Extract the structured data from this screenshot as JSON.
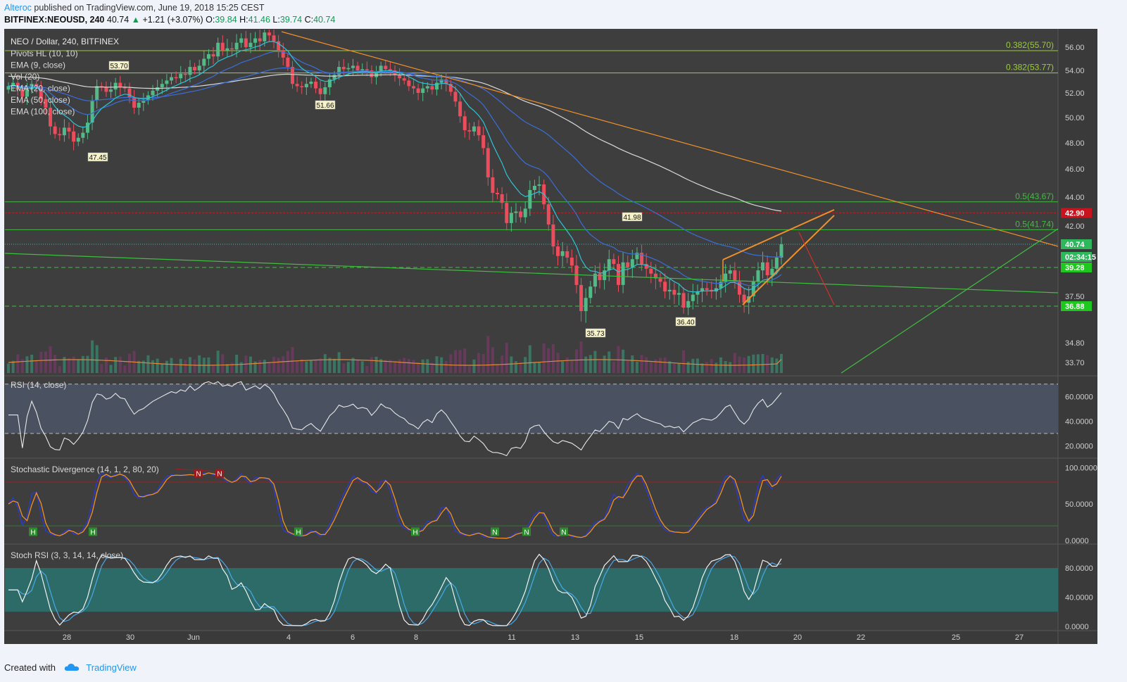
{
  "header": {
    "author": "Alteroc",
    "published_text": "published on TradingView.com, June 19, 2018 15:25 CEST",
    "symbol_line": "BITFINEX:NEOUSD, 240",
    "last": "40.74",
    "change": "+1.21 (+3.07%)",
    "o_label": "O:",
    "o": "39.84",
    "h_label": "H:",
    "h": "41.46",
    "l_label": "L:",
    "l": "39.74",
    "c_label": "C:",
    "c": "40.74"
  },
  "footer": {
    "created_with": "Created with",
    "brand": "TradingView"
  },
  "colors": {
    "panel_bg": "#3e3e3e",
    "up": "#53b987",
    "down": "#eb4d5c",
    "ema9": "#2ec4d8",
    "ema20": "#3a6ed8",
    "ema100": "#d9d9d9",
    "trend": "#f0902a",
    "support": "#3fbf3f",
    "fib": "#9ccc3c",
    "resistance": "#b2222c",
    "rsi_band": "#4a5160",
    "stoch_rsi_band": "#2c6b68"
  },
  "chart_data": [
    {
      "type": "candlestick",
      "title": "NEO / Dollar, 240, BITFINEX",
      "legend": [
        "Pivots HL (10, 10)",
        "EMA (9, close)",
        "Vol (20)",
        "EMA (20, close)",
        "EMA (50, close)",
        "EMA (100, close)"
      ],
      "x_tick_labels": [
        "28",
        "30",
        "Jun",
        "4",
        "6",
        "8",
        "11",
        "13",
        "15",
        "18",
        "20",
        "22",
        "25",
        "27"
      ],
      "y_tick_labels": [
        "56.00",
        "54.00",
        "52.00",
        "50.00",
        "48.00",
        "46.00",
        "44.00",
        "42.00",
        "37.50",
        "34.80",
        "33.70"
      ],
      "ylim": [
        33.3,
        57.2
      ],
      "close": [
        52.6,
        52.9,
        52.3,
        51.7,
        52.3,
        52.8,
        52.4,
        51.5,
        50.8,
        49.3,
        48.7,
        48.6,
        49.2,
        48.9,
        48.1,
        48.4,
        48.8,
        49.6,
        51.4,
        52.6,
        52.5,
        52.1,
        52.3,
        52.9,
        52.5,
        52.4,
        51.6,
        50.8,
        51.2,
        51.4,
        51.8,
        52.2,
        52.5,
        52.8,
        53.1,
        53.4,
        53.3,
        53.7,
        53.6,
        54.3,
        54.0,
        54.4,
        55.0,
        55.4,
        55.2,
        56.3,
        55.7,
        55.9,
        55.8,
        56.3,
        56.6,
        56.0,
        56.3,
        56.6,
        56.4,
        57.0,
        56.8,
        56.4,
        55.7,
        55.1,
        54.3,
        52.8,
        52.6,
        52.5,
        52.8,
        53.0,
        52.4,
        51.9,
        52.5,
        53.2,
        53.6,
        54.3,
        54.1,
        54.2,
        54.4,
        54.0,
        54.1,
        54.0,
        53.4,
        53.8,
        54.4,
        54.1,
        54.0,
        53.6,
        53.3,
        53.1,
        52.6,
        52.4,
        52.0,
        52.4,
        52.6,
        52.3,
        52.9,
        53.2,
        52.8,
        52.1,
        51.3,
        50.1,
        49.0,
        48.9,
        49.3,
        48.6,
        47.6,
        45.4,
        44.3,
        44.2,
        43.6,
        42.2,
        42.9,
        43.0,
        42.6,
        43.2,
        44.5,
        44.8,
        44.9,
        43.5,
        42.1,
        40.6,
        40.0,
        40.3,
        39.9,
        39.4,
        38.2,
        36.6,
        37.4,
        38.1,
        38.9,
        38.5,
        39.1,
        39.8,
        39.5,
        38.2,
        39.6,
        39.3,
        39.8,
        40.2,
        39.5,
        39.2,
        38.9,
        38.6,
        38.4,
        37.8,
        37.9,
        37.6,
        37.7,
        36.8,
        37.2,
        37.6,
        37.8,
        38.0,
        37.9,
        37.8,
        38.0,
        38.4,
        38.9,
        39.1,
        38.4,
        37.6,
        37.1,
        37.5,
        38.4,
        39.1,
        39.6,
        38.8,
        39.2,
        39.9,
        40.74
      ],
      "x_range_note": "candles from May 27 to June 19, 2018 (4h)",
      "price_lines": [
        {
          "label": "0.382(55.70)",
          "value": 55.7
        },
        {
          "label": "0.382(53.77)",
          "value": 53.77
        },
        {
          "label": "0.5(43.67)",
          "value": 43.67
        },
        {
          "label": "0.5(41.74)",
          "value": 41.74
        }
      ],
      "price_badges": [
        {
          "label": "42.90",
          "value": 42.9,
          "color": "#c8141e"
        },
        {
          "label": "40.74",
          "value": 40.74,
          "color": "#2eb85c"
        },
        {
          "label": "02:34:15",
          "value": 40.3,
          "color": "#2eb85c"
        },
        {
          "label": "39.28",
          "value": 39.28,
          "color": "#1fc81f"
        },
        {
          "label": "36.88",
          "value": 36.88,
          "color": "#1fc81f"
        }
      ],
      "pivot_labels": [
        {
          "text": "53.70",
          "value": 53.7
        },
        {
          "text": "47.45",
          "value": 47.45
        },
        {
          "text": "51.66",
          "value": 51.66
        },
        {
          "text": "41.98",
          "value": 41.98
        },
        {
          "text": "35.73",
          "value": 35.73
        },
        {
          "text": "36.40",
          "value": 36.4
        }
      ]
    },
    {
      "type": "line",
      "title": "RSI (14, close)",
      "y_tick_labels": [
        "60.0000",
        "40.0000",
        "20.0000"
      ],
      "ylim": [
        10,
        75
      ],
      "levels": [
        70,
        30
      ]
    },
    {
      "type": "line",
      "title": "Stochastic Divergence (14, 1, 2, 80, 20)",
      "y_tick_labels": [
        "100.0000",
        "50.0000",
        "0.0000"
      ],
      "ylim": [
        -5,
        110
      ],
      "levels": [
        80,
        20
      ],
      "markers": [
        "H",
        "H",
        "N",
        "N",
        "H",
        "H",
        "N",
        "N",
        "N"
      ]
    },
    {
      "type": "line",
      "title": "Stoch RSI (3, 3, 14, 14, close)",
      "y_tick_labels": [
        "80.0000",
        "40.0000",
        "0.0000"
      ],
      "ylim": [
        -5,
        110
      ],
      "levels": [
        80,
        20
      ]
    }
  ]
}
